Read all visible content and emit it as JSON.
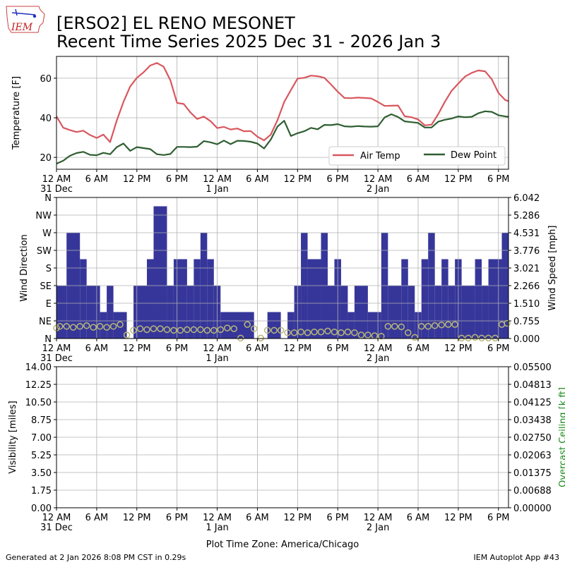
{
  "header": {
    "logo_text": "IEM",
    "title_line1": "[ERSO2] EL RENO MESONET",
    "title_line2": "Recent Time Series 2025 Dec 31 - 2026 Jan 3"
  },
  "footer": {
    "generated": "Generated at 2 Jan 2026 8:08 PM CST in 0.29s",
    "app": "IEM Autoplot App #43",
    "timezone_label": "Plot Time Zone: America/Chicago"
  },
  "colors": {
    "air_temp": "#d9575e",
    "dew_point": "#2f5e32",
    "wind_bar": "#36369a",
    "wind_dot": "#b8b878",
    "ceiling_label": "#1a8a1a",
    "grid": "#b0b0b0"
  },
  "chart_data": [
    {
      "type": "line",
      "x_unit": "hours since 2025-12-31 00:00 CST",
      "xlim": [
        0,
        67.5
      ],
      "ylabel": "Temperature [F]",
      "ylim": [
        14,
        71
      ],
      "yticks": [
        20,
        40,
        60
      ],
      "grid": true,
      "legend_placement": "lower-right",
      "x_ticks": [
        {
          "h": 0,
          "label": "12 AM",
          "date": "31 Dec"
        },
        {
          "h": 6,
          "label": "6 AM",
          "date": ""
        },
        {
          "h": 12,
          "label": "12 PM",
          "date": ""
        },
        {
          "h": 18,
          "label": "6 PM",
          "date": ""
        },
        {
          "h": 24,
          "label": "12 AM",
          "date": "1 Jan"
        },
        {
          "h": 30,
          "label": "6 AM",
          "date": ""
        },
        {
          "h": 36,
          "label": "12 PM",
          "date": ""
        },
        {
          "h": 42,
          "label": "6 PM",
          "date": ""
        },
        {
          "h": 48,
          "label": "12 AM",
          "date": "2 Jan"
        },
        {
          "h": 54,
          "label": "6 AM",
          "date": ""
        },
        {
          "h": 60,
          "label": "12 PM",
          "date": ""
        },
        {
          "h": 66,
          "label": "6 PM",
          "date": ""
        }
      ],
      "series": [
        {
          "name": "Air Temp",
          "x": [
            0,
            1,
            2,
            3,
            4,
            5,
            6,
            7,
            8,
            9,
            10,
            11,
            12,
            13,
            14,
            15,
            16,
            17,
            18,
            19,
            20,
            21,
            22,
            23,
            24,
            25,
            26,
            27,
            28,
            29,
            30,
            31,
            32,
            33,
            34,
            35,
            36,
            37,
            38,
            39,
            40,
            41,
            42,
            43,
            44,
            45,
            46,
            47,
            48,
            49,
            50,
            51,
            52,
            53,
            54,
            55,
            56,
            57,
            58,
            59,
            60,
            61,
            62,
            63,
            64,
            65,
            66,
            67,
            67.5
          ],
          "values": [
            40.7,
            35,
            33.8,
            32.8,
            33.5,
            31.3,
            29.8,
            31.5,
            27.7,
            38.6,
            48,
            55.8,
            60.2,
            63,
            66.4,
            67.7,
            65.8,
            59,
            47.5,
            47,
            42.7,
            39.4,
            40.6,
            38.3,
            34.8,
            35.4,
            34.1,
            34.6,
            33.2,
            33.3,
            30.5,
            28.6,
            31.5,
            38.8,
            48,
            54,
            59.8,
            60.2,
            61.3,
            61,
            60.2,
            56.8,
            53.2,
            50,
            49.9,
            50.2,
            50,
            49.8,
            48,
            46,
            46.1,
            46.2,
            40.8,
            40.3,
            39.2,
            36.2,
            36.5,
            41.8,
            48.1,
            53.6,
            57.3,
            60.8,
            62.7,
            63.9,
            63.5,
            59.5,
            52.5,
            49,
            48.4
          ]
        },
        {
          "name": "Dew Point",
          "x": [
            0,
            1,
            2,
            3,
            4,
            5,
            6,
            7,
            8,
            9,
            10,
            11,
            12,
            13,
            14,
            15,
            16,
            17,
            18,
            19,
            20,
            21,
            22,
            23,
            24,
            25,
            26,
            27,
            28,
            29,
            30,
            31,
            32,
            33,
            34,
            35,
            36,
            37,
            38,
            39,
            40,
            41,
            42,
            43,
            44,
            45,
            46,
            47,
            48,
            49,
            50,
            51,
            52,
            53,
            54,
            55,
            56,
            57,
            58,
            59,
            60,
            61,
            62,
            63,
            64,
            65,
            66,
            67,
            67.5
          ],
          "values": [
            16.8,
            18.3,
            20.8,
            22.2,
            22.8,
            21.3,
            21.1,
            22.3,
            21.6,
            25.2,
            27,
            23.3,
            25.2,
            24.7,
            24.2,
            21.6,
            21.2,
            21.7,
            25.3,
            25.3,
            25.2,
            25.4,
            28.2,
            27.6,
            26.6,
            28.5,
            26.7,
            28.4,
            28.3,
            27.9,
            27,
            24.5,
            29,
            35.6,
            38.5,
            30.8,
            32.2,
            33.2,
            34.9,
            34.2,
            36.4,
            36.3,
            36.8,
            35.7,
            35.5,
            35.8,
            35.6,
            35.5,
            35.7,
            40.2,
            41.8,
            40.4,
            38.2,
            37.8,
            37.4,
            35.1,
            35.1,
            38,
            39,
            39.6,
            40.7,
            40.3,
            40.5,
            42.3,
            43.3,
            43,
            41.3,
            40.7,
            40.5
          ]
        }
      ]
    },
    {
      "type": "bar",
      "x_unit": "hours since 2025-12-31 00:00 CST",
      "xlim": [
        0,
        67.5
      ],
      "ylabel": "Wind Direction",
      "y2label": "Wind Speed [mph]",
      "direction_ticks": [
        "N",
        "NE",
        "E",
        "SE",
        "S",
        "SW",
        "W",
        "NW",
        "N"
      ],
      "direction_ylim": [
        0,
        360
      ],
      "speed_ticks": [
        "0.000",
        "0.755",
        "1.510",
        "2.266",
        "3.021",
        "3.776",
        "4.531",
        "5.286",
        "6.042"
      ],
      "speed_ylim": [
        0,
        6.042
      ],
      "grid": true,
      "x_ticks": [
        {
          "h": 0,
          "label": "12 AM",
          "date": "31 Dec"
        },
        {
          "h": 6,
          "label": "6 AM",
          "date": ""
        },
        {
          "h": 12,
          "label": "12 PM",
          "date": ""
        },
        {
          "h": 18,
          "label": "6 PM",
          "date": ""
        },
        {
          "h": 24,
          "label": "12 AM",
          "date": "1 Jan"
        },
        {
          "h": 30,
          "label": "6 AM",
          "date": ""
        },
        {
          "h": 36,
          "label": "12 PM",
          "date": ""
        },
        {
          "h": 42,
          "label": "6 PM",
          "date": ""
        },
        {
          "h": 48,
          "label": "12 AM",
          "date": "2 Jan"
        },
        {
          "h": 54,
          "label": "6 AM",
          "date": ""
        },
        {
          "h": 60,
          "label": "12 PM",
          "date": ""
        },
        {
          "h": 66,
          "label": "6 PM",
          "date": ""
        }
      ],
      "direction_bars": [
        {
          "x0": 0,
          "x1": 1.5,
          "deg": 135
        },
        {
          "x0": 1.5,
          "x1": 3.5,
          "deg": 270
        },
        {
          "x0": 3.5,
          "x1": 4.5,
          "deg": 202.5
        },
        {
          "x0": 4.5,
          "x1": 6.5,
          "deg": 135
        },
        {
          "x0": 6.5,
          "x1": 7.5,
          "deg": 67.5
        },
        {
          "x0": 7.5,
          "x1": 8.5,
          "deg": 135
        },
        {
          "x0": 8.5,
          "x1": 10.5,
          "deg": 67.5
        },
        {
          "x0": 11.5,
          "x1": 13.5,
          "deg": 135
        },
        {
          "x0": 13.5,
          "x1": 14.5,
          "deg": 202.5
        },
        {
          "x0": 14.5,
          "x1": 16.5,
          "deg": 337.5
        },
        {
          "x0": 16.5,
          "x1": 17.5,
          "deg": 135
        },
        {
          "x0": 17.5,
          "x1": 19.5,
          "deg": 202.5
        },
        {
          "x0": 19.5,
          "x1": 20.5,
          "deg": 135
        },
        {
          "x0": 20.5,
          "x1": 21.5,
          "deg": 202.5
        },
        {
          "x0": 21.5,
          "x1": 22.5,
          "deg": 270
        },
        {
          "x0": 22.5,
          "x1": 23.5,
          "deg": 202.5
        },
        {
          "x0": 23.5,
          "x1": 24.5,
          "deg": 135
        },
        {
          "x0": 24.5,
          "x1": 29.5,
          "deg": 67.5
        },
        {
          "x0": 31.5,
          "x1": 33.5,
          "deg": 67.5
        },
        {
          "x0": 34.5,
          "x1": 35.5,
          "deg": 67.5
        },
        {
          "x0": 35.5,
          "x1": 36.5,
          "deg": 135
        },
        {
          "x0": 36.5,
          "x1": 37.5,
          "deg": 270
        },
        {
          "x0": 37.5,
          "x1": 39.5,
          "deg": 202.5
        },
        {
          "x0": 39.5,
          "x1": 40.5,
          "deg": 270
        },
        {
          "x0": 40.5,
          "x1": 41.5,
          "deg": 135
        },
        {
          "x0": 41.5,
          "x1": 42.5,
          "deg": 202.5
        },
        {
          "x0": 42.5,
          "x1": 43.5,
          "deg": 135
        },
        {
          "x0": 43.5,
          "x1": 44.5,
          "deg": 67.5
        },
        {
          "x0": 44.5,
          "x1": 46.5,
          "deg": 135
        },
        {
          "x0": 46.5,
          "x1": 48.5,
          "deg": 67.5
        },
        {
          "x0": 48.5,
          "x1": 49.5,
          "deg": 270
        },
        {
          "x0": 49.5,
          "x1": 51.5,
          "deg": 135
        },
        {
          "x0": 51.5,
          "x1": 52.5,
          "deg": 202.5
        },
        {
          "x0": 52.5,
          "x1": 53.5,
          "deg": 135
        },
        {
          "x0": 53.5,
          "x1": 54.5,
          "deg": 67.5
        },
        {
          "x0": 54.5,
          "x1": 55.5,
          "deg": 202.5
        },
        {
          "x0": 55.5,
          "x1": 56.5,
          "deg": 270
        },
        {
          "x0": 56.5,
          "x1": 57.5,
          "deg": 135
        },
        {
          "x0": 57.5,
          "x1": 58.5,
          "deg": 202.5
        },
        {
          "x0": 58.5,
          "x1": 59.5,
          "deg": 135
        },
        {
          "x0": 59.5,
          "x1": 60.5,
          "deg": 202.5
        },
        {
          "x0": 60.5,
          "x1": 62.5,
          "deg": 135
        },
        {
          "x0": 62.5,
          "x1": 63.5,
          "deg": 202.5
        },
        {
          "x0": 63.5,
          "x1": 64.5,
          "deg": 135
        },
        {
          "x0": 64.5,
          "x1": 66.5,
          "deg": 202.5
        },
        {
          "x0": 66.5,
          "x1": 67.5,
          "deg": 270
        }
      ],
      "speed_points": {
        "x": [
          0,
          0.5,
          1.5,
          2.5,
          3.5,
          4.5,
          5.5,
          6.5,
          7.5,
          8.5,
          9.5,
          10.5,
          11.5,
          12.5,
          13.5,
          14.5,
          15.5,
          16.5,
          17.5,
          18.5,
          19.5,
          20.5,
          21.5,
          22.5,
          23.5,
          24.5,
          25.5,
          26.5,
          27.5,
          28.5,
          29.5,
          30.5,
          31.5,
          32.5,
          33.5,
          34.5,
          35.5,
          36.5,
          37.5,
          38.5,
          39.5,
          40.5,
          41.5,
          42.5,
          43.5,
          44.5,
          45.5,
          46.5,
          47.5,
          48.5,
          49.5,
          50.5,
          51.5,
          52.5,
          53.5,
          54.5,
          55.5,
          56.5,
          57.5,
          58.5,
          59.5,
          60.5,
          61.5,
          62.5,
          63.5,
          64.5,
          65.5,
          66.5,
          67.3
        ],
        "values": [
          0.45,
          0.52,
          0.52,
          0.48,
          0.52,
          0.55,
          0.48,
          0.52,
          0.48,
          0.52,
          0.6,
          0.15,
          0.35,
          0.42,
          0.38,
          0.42,
          0.42,
          0.38,
          0.35,
          0.35,
          0.38,
          0.38,
          0.38,
          0.35,
          0.35,
          0.38,
          0.45,
          0.42,
          0.02,
          0.6,
          0.42,
          0.02,
          0.35,
          0.35,
          0.35,
          0.25,
          0.25,
          0.28,
          0.25,
          0.28,
          0.28,
          0.32,
          0.28,
          0.25,
          0.28,
          0.25,
          0.15,
          0.15,
          0.12,
          0.1,
          0.52,
          0.52,
          0.5,
          0.25,
          0.05,
          0.52,
          0.52,
          0.55,
          0.58,
          0.6,
          0.6,
          0.02,
          0.02,
          0.05,
          0.02,
          0.02,
          0.02,
          0.6,
          0.65
        ]
      }
    },
    {
      "type": "line",
      "x_unit": "hours since 2025-12-31 00:00 CST",
      "xlim": [
        0,
        67.5
      ],
      "ylabel": "Visibility [miles]",
      "y2label": "Overcast Ceiling [k ft]",
      "visibility_ticks": [
        "0.00",
        "1.75",
        "3.50",
        "5.25",
        "7.00",
        "8.75",
        "10.50",
        "12.25",
        "14.00"
      ],
      "visibility_ylim": [
        0,
        14
      ],
      "ceiling_ticks": [
        "0.00000",
        "0.00688",
        "0.01375",
        "0.02063",
        "0.02750",
        "0.03438",
        "0.04125",
        "0.04813",
        "0.05500"
      ],
      "ceiling_ylim": [
        0,
        0.055
      ],
      "grid": true,
      "x_ticks": [
        {
          "h": 0,
          "label": "12 AM",
          "date": "31 Dec"
        },
        {
          "h": 6,
          "label": "6 AM",
          "date": ""
        },
        {
          "h": 12,
          "label": "12 PM",
          "date": ""
        },
        {
          "h": 18,
          "label": "6 PM",
          "date": ""
        },
        {
          "h": 24,
          "label": "12 AM",
          "date": "1 Jan"
        },
        {
          "h": 30,
          "label": "6 AM",
          "date": ""
        },
        {
          "h": 36,
          "label": "12 PM",
          "date": ""
        },
        {
          "h": 42,
          "label": "6 PM",
          "date": ""
        },
        {
          "h": 48,
          "label": "12 AM",
          "date": "2 Jan"
        },
        {
          "h": 54,
          "label": "6 AM",
          "date": ""
        },
        {
          "h": 60,
          "label": "12 PM",
          "date": ""
        },
        {
          "h": 66,
          "label": "6 PM",
          "date": ""
        }
      ],
      "series": []
    }
  ]
}
